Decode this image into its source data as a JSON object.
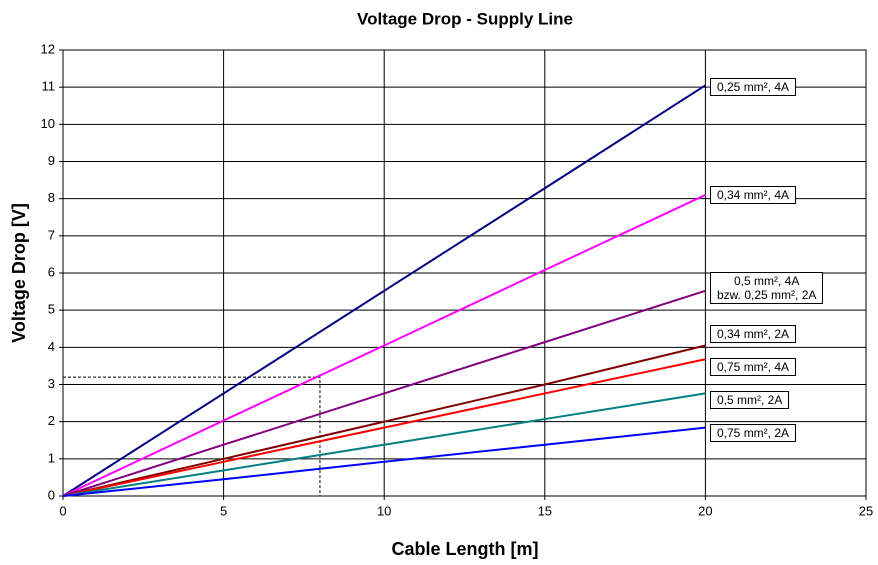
{
  "chart_data": {
    "type": "line",
    "title": "Voltage Drop - Supply Line",
    "x_label": "Cable Length [m]",
    "y_label": "Voltage Drop [V]",
    "x": [
      0,
      5,
      10,
      15,
      20
    ],
    "series": [
      {
        "name": "0,25 mm², 4A",
        "color": "#000080",
        "values": [
          0,
          2.76,
          5.52,
          8.28,
          11.05
        ]
      },
      {
        "name": "0,34 mm², 4A",
        "color": "#ff00ff",
        "values": [
          0,
          2.03,
          4.05,
          6.08,
          8.1
        ]
      },
      {
        "name": "0,5 mm², 4A\nbzw. 0,25 mm², 2A",
        "color": "#800080",
        "values": [
          0,
          1.38,
          2.76,
          4.14,
          5.52
        ]
      },
      {
        "name": "0,34 mm², 2A",
        "color": "#800000",
        "values": [
          0,
          1.0,
          2.0,
          3.0,
          4.05
        ]
      },
      {
        "name": "0,75 mm², 4A",
        "color": "#ff0000",
        "values": [
          0,
          0.92,
          1.84,
          2.76,
          3.68
        ]
      },
      {
        "name": "0,5 mm², 2A",
        "color": "#008080",
        "values": [
          0,
          0.69,
          1.38,
          2.07,
          2.76
        ]
      },
      {
        "name": "0,75 mm², 2A",
        "color": "#0000ff",
        "values": [
          0,
          0.45,
          0.92,
          1.38,
          1.84
        ]
      }
    ],
    "annotation_point": {
      "x": 8,
      "y": 3.2
    },
    "xlim": [
      0,
      25
    ],
    "xticks": [
      0,
      5,
      10,
      15,
      20,
      25
    ],
    "ylim": [
      0,
      12
    ],
    "yticks": [
      0,
      1,
      2,
      3,
      4,
      5,
      6,
      7,
      8,
      9,
      10,
      11,
      12
    ],
    "grid": true
  }
}
